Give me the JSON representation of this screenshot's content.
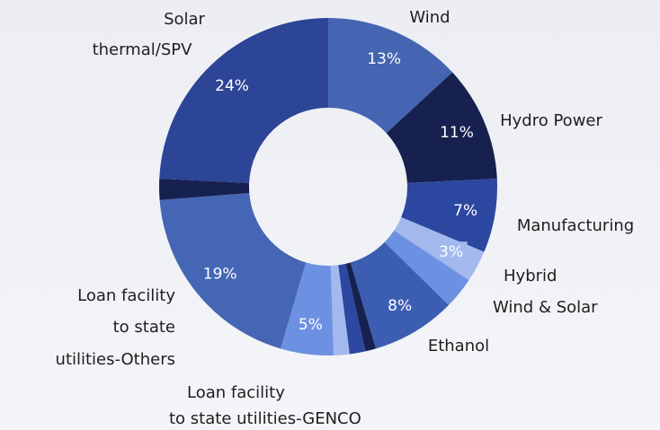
{
  "chart_data": {
    "type": "donut",
    "categories": [
      [
        "Wind"
      ],
      [
        "Hydro Power"
      ],
      [
        "Manufacturing"
      ],
      [
        "Hybrid",
        "Wind & Solar"
      ],
      null,
      [
        "Ethanol"
      ],
      null,
      null,
      null,
      [
        "Loan facility",
        "to state utilities-GENCO"
      ],
      [
        "Loan facility",
        "to state",
        "utilities-Others"
      ],
      null,
      [
        "Solar",
        "thermal/SPV"
      ]
    ],
    "values": [
      13,
      11,
      7,
      3,
      3,
      8,
      1,
      1.5,
      1.5,
      5,
      19,
      2,
      24
    ],
    "value_labels": [
      "13%",
      "11%",
      "7%",
      "3%",
      null,
      "8%",
      null,
      null,
      null,
      "5%",
      "19%",
      null,
      "24%"
    ],
    "colors": [
      "#4565b3",
      "#172150",
      "#2c479f",
      "#a3b9ee",
      "#6d91e2",
      "#3c5eb2",
      "#172150",
      "#2c479f",
      "#a3b9ee",
      "#6d91e2",
      "#4466b4",
      "#172150",
      "#2d4597"
    ]
  }
}
